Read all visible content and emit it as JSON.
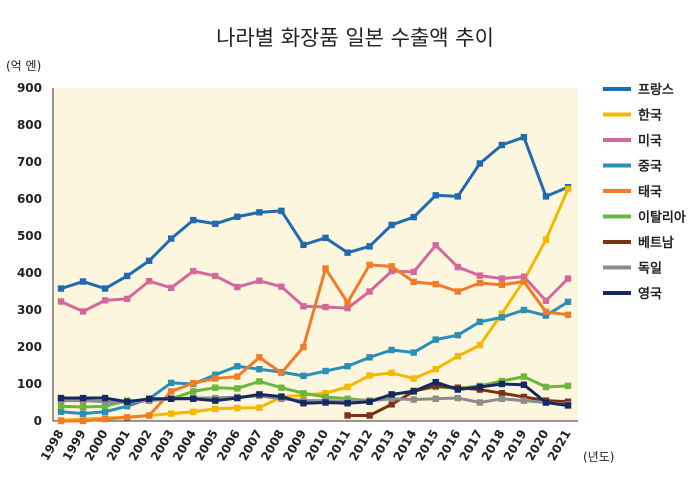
{
  "chart_data": {
    "type": "line",
    "title": "나라별 화장품 일본 수출액 추이",
    "ylabel": "(억 엔)",
    "xlabel": "(년도)",
    "ylim": [
      0,
      900
    ],
    "yticks": [
      "0",
      "100",
      "200",
      "300",
      "400",
      "500",
      "600",
      "700",
      "800",
      "900"
    ],
    "x": [
      "1998",
      "1999",
      "2000",
      "2001",
      "2002",
      "2003",
      "2004",
      "2005",
      "2006",
      "2007",
      "2008",
      "2009",
      "2010",
      "2011",
      "2012",
      "2013",
      "2014",
      "2015",
      "2016",
      "2017",
      "2018",
      "2019",
      "2020",
      "2021"
    ],
    "legend_position": "right",
    "grid": false,
    "series": [
      {
        "name": "프랑스",
        "color": "#1f6ab0",
        "values": [
          358,
          377,
          358,
          392,
          433,
          493,
          543,
          533,
          552,
          564,
          568,
          476,
          495,
          455,
          472,
          530,
          551,
          610,
          607,
          696,
          746,
          767,
          607,
          632
        ]
      },
      {
        "name": "한국",
        "color": "#f5b800",
        "values": [
          2,
          5,
          8,
          10,
          15,
          20,
          25,
          33,
          35,
          36,
          65,
          70,
          75,
          92,
          123,
          130,
          115,
          140,
          175,
          205,
          290,
          380,
          490,
          627
        ]
      },
      {
        "name": "미국",
        "color": "#d4689b",
        "values": [
          323,
          296,
          326,
          330,
          378,
          360,
          405,
          392,
          362,
          379,
          363,
          310,
          308,
          305,
          350,
          405,
          403,
          475,
          416,
          393,
          385,
          390,
          325,
          385
        ]
      },
      {
        "name": "중국",
        "color": "#2a8fb5",
        "values": [
          25,
          20,
          25,
          40,
          60,
          103,
          100,
          125,
          148,
          140,
          132,
          122,
          135,
          148,
          172,
          192,
          185,
          220,
          232,
          268,
          280,
          300,
          285,
          322
        ]
      },
      {
        "name": "태국",
        "color": "#f07b28",
        "values": [
          0,
          0,
          5,
          10,
          15,
          80,
          102,
          115,
          120,
          172,
          130,
          200,
          412,
          320,
          422,
          418,
          376,
          370,
          350,
          373,
          368,
          377,
          295,
          287
        ]
      },
      {
        "name": "이탈리아",
        "color": "#6ab83b",
        "values": [
          40,
          38,
          40,
          55,
          55,
          60,
          80,
          90,
          88,
          107,
          90,
          75,
          65,
          60,
          55,
          70,
          82,
          92,
          88,
          95,
          108,
          120,
          92,
          95
        ]
      },
      {
        "name": "베트남",
        "color": "#7b3210",
        "values": [
          null,
          null,
          null,
          null,
          null,
          null,
          null,
          null,
          null,
          null,
          null,
          null,
          null,
          15,
          15,
          45,
          80,
          95,
          90,
          85,
          75,
          65,
          55,
          52
        ]
      },
      {
        "name": "독일",
        "color": "#8c8c8c",
        "values": [
          55,
          55,
          52,
          50,
          55,
          60,
          62,
          62,
          65,
          68,
          60,
          55,
          55,
          52,
          55,
          60,
          58,
          60,
          62,
          50,
          60,
          55,
          50,
          45
        ]
      },
      {
        "name": "영국",
        "color": "#162860",
        "values": [
          62,
          62,
          62,
          52,
          60,
          60,
          60,
          55,
          62,
          72,
          66,
          48,
          50,
          48,
          52,
          72,
          80,
          105,
          85,
          92,
          100,
          98,
          50,
          42
        ]
      }
    ]
  }
}
